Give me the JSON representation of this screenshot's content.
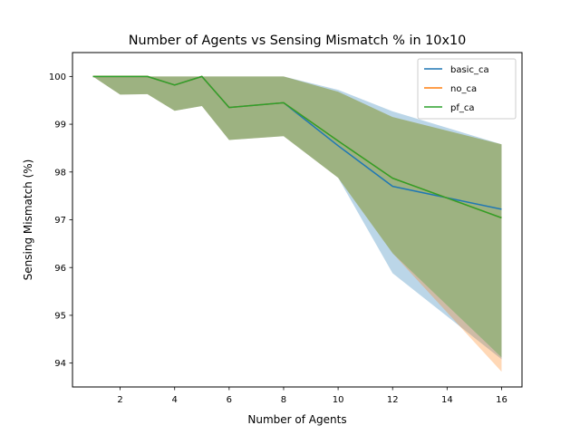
{
  "chart_data": {
    "type": "line",
    "title": "Number of Agents vs Sensing Mismatch % in 10x10",
    "xlabel": "Number of Agents",
    "ylabel": "Sensing Mismatch (%)",
    "xlim": [
      0.25,
      16.75
    ],
    "ylim": [
      93.5,
      100.5
    ],
    "xticks": [
      2,
      4,
      6,
      8,
      10,
      12,
      14,
      16
    ],
    "yticks": [
      94,
      95,
      96,
      97,
      98,
      99,
      100
    ],
    "x": [
      1,
      2,
      3,
      4,
      5,
      6,
      8,
      10,
      12,
      16
    ],
    "grid": false,
    "legend_position": "top-right",
    "series": [
      {
        "name": "basic_ca",
        "color": "#1f77b4",
        "band_alpha": 0.3,
        "values": [
          100,
          100,
          100,
          99.82,
          100,
          99.35,
          99.45,
          98.55,
          97.7,
          97.22
        ],
        "band_low": [
          100,
          99.62,
          99.63,
          99.28,
          99.38,
          98.67,
          98.75,
          97.88,
          95.88,
          94.08
        ],
        "band_high": [
          100,
          100,
          100,
          100,
          100,
          100,
          100,
          99.72,
          99.27,
          98.58
        ]
      },
      {
        "name": "no_ca",
        "color": "#ff7f0e",
        "band_alpha": 0.3,
        "values": [
          100,
          100,
          100,
          99.82,
          100,
          99.35,
          99.45,
          98.65,
          97.87,
          97.04
        ],
        "band_low": [
          100,
          99.62,
          99.63,
          99.28,
          99.38,
          98.67,
          98.75,
          97.88,
          96.3,
          93.82
        ],
        "band_high": [
          100,
          100,
          100,
          100,
          100,
          100,
          100,
          99.68,
          99.15,
          98.58
        ]
      },
      {
        "name": "pf_ca",
        "color": "#2ca02c",
        "band_alpha": 0.3,
        "values": [
          100,
          100,
          100,
          99.82,
          100,
          99.35,
          99.45,
          98.65,
          97.87,
          97.04
        ],
        "band_low": [
          100,
          99.62,
          99.63,
          99.28,
          99.38,
          98.67,
          98.75,
          97.88,
          96.3,
          94.12
        ],
        "band_high": [
          100,
          100,
          100,
          100,
          100,
          100,
          100,
          99.68,
          99.15,
          98.58
        ]
      }
    ]
  }
}
